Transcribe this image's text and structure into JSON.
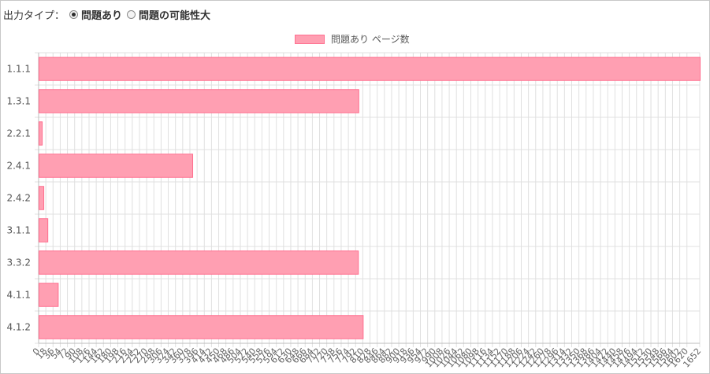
{
  "toolbar": {
    "label": "出力タイプ：",
    "options": [
      {
        "label": "問題あり",
        "selected": true
      },
      {
        "label": "問題の可能性大",
        "selected": false
      }
    ]
  },
  "chart_data": {
    "type": "bar",
    "orientation": "horizontal",
    "categories": [
      "1.1.1",
      "1.3.1",
      "2.2.1",
      "2.4.1",
      "2.4.2",
      "3.1.1",
      "3.3.2",
      "4.1.1",
      "4.1.2"
    ],
    "series": [
      {
        "name": "問題あり ページ数",
        "values": [
          1652,
          799,
          8,
          384,
          12,
          22,
          798,
          48,
          810
        ]
      }
    ],
    "x_ticks_step": 18,
    "x_ticks_range": [
      0,
      1620
    ],
    "x_last_tick": 1652,
    "xlim": [
      0,
      1652
    ],
    "grid": true,
    "legend": "top-center",
    "colors": {
      "bar_fill": "#ff9fb2",
      "bar_border": "#ff6f8f",
      "grid": "#e0e0e0"
    }
  }
}
